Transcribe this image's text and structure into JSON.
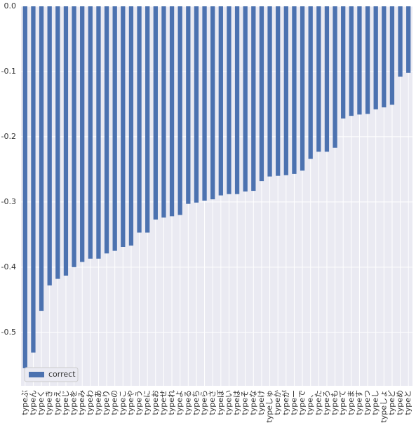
{
  "chart_data": {
    "type": "bar",
    "categories": [
      "typeぶ",
      "typeん",
      "typeく",
      "typeき",
      "typeえ",
      "typeじ",
      "typeを",
      "typeみ",
      "typeわ",
      "typeあ",
      "typeり",
      "typeの",
      "typeこ",
      "typeや",
      "typeう",
      "typeに",
      "typeお",
      "typeせ",
      "typeれ",
      "typeよ",
      "typeる",
      "typeち",
      "typeら",
      "typeさ",
      "typeぼ",
      "typeい",
      "typeは",
      "typeそ",
      "typeな",
      "typeけ",
      "typeしゅ",
      "typeか",
      "typeが",
      "typeー",
      "typeで",
      "type、",
      "typeた",
      "typeろ",
      "typeも",
      "typeて",
      "typeま",
      "typeす",
      "typeつ",
      "typeし",
      "typeしょ",
      "typeど",
      "typeめ",
      "typeと"
    ],
    "series": [
      {
        "name": "correct",
        "color": "#4c72b0",
        "values": [
          -0.555,
          -0.531,
          -0.467,
          -0.428,
          -0.418,
          -0.413,
          -0.4,
          -0.392,
          -0.387,
          -0.387,
          -0.379,
          -0.375,
          -0.369,
          -0.367,
          -0.347,
          -0.347,
          -0.327,
          -0.324,
          -0.322,
          -0.32,
          -0.303,
          -0.301,
          -0.298,
          -0.296,
          -0.29,
          -0.288,
          -0.288,
          -0.284,
          -0.283,
          -0.268,
          -0.261,
          -0.26,
          -0.259,
          -0.257,
          -0.252,
          -0.234,
          -0.223,
          -0.223,
          -0.217,
          -0.172,
          -0.168,
          -0.166,
          -0.165,
          -0.158,
          -0.155,
          -0.151,
          -0.108,
          -0.102
        ]
      }
    ],
    "ylim": [
      -0.582,
      0
    ],
    "yticks": [
      {
        "value": 0,
        "label": "0.0"
      },
      -0.1,
      -0.2,
      -0.3,
      -0.4,
      -0.5
    ],
    "grid": true,
    "legend": "lower left"
  }
}
